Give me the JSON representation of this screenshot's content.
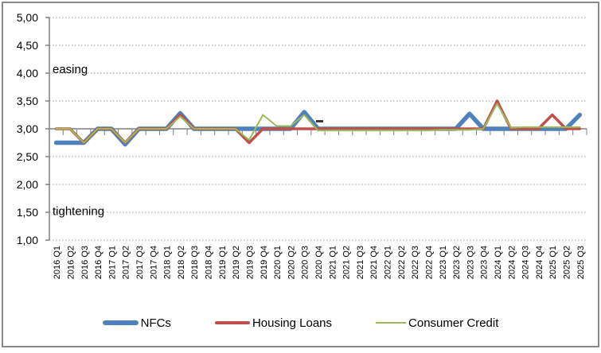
{
  "chart_data": {
    "type": "line",
    "title": "",
    "xlabel": "",
    "ylabel": "",
    "grid": "horizontal-dotted",
    "legend_position": "bottom",
    "ylim": [
      1.0,
      5.0
    ],
    "category_axis_cross_value": 3.0,
    "yticks": [
      {
        "label": "5,00",
        "value": 5.0
      },
      {
        "label": "4,50",
        "value": 4.5
      },
      {
        "label": "4,00",
        "value": 4.0
      },
      {
        "label": "3,50",
        "value": 3.5
      },
      {
        "label": "3,00",
        "value": 3.0
      },
      {
        "label": "2,50",
        "value": 2.5
      },
      {
        "label": "2,00",
        "value": 2.0
      },
      {
        "label": "1,50",
        "value": 1.5
      },
      {
        "label": "1,00",
        "value": 1.0
      }
    ],
    "categories": [
      "2016 Q1",
      "2016 Q2",
      "2016 Q3",
      "2016 Q4",
      "2017 Q1",
      "2017 Q2",
      "2017 Q3",
      "2017 Q4",
      "2018 Q1",
      "2018 Q2",
      "2018 Q3",
      "2018 Q4",
      "2019 Q1",
      "2019 Q2",
      "2019 Q3",
      "2019 Q4",
      "2020 Q1",
      "2020 Q2",
      "2020 Q3",
      "2020 Q4",
      "2021 Q1",
      "2021 Q2",
      "2021 Q3",
      "2021 Q4",
      "2022 Q1",
      "2022 Q2",
      "2022 Q3",
      "2022 Q4",
      "2023 Q1",
      "2023 Q2",
      "2023 Q3",
      "2023 Q4",
      "2024 Q1",
      "2024 Q2",
      "2024 Q3",
      "2024 Q4",
      "2025 Q1",
      "2025 Q2",
      "2025 Q3"
    ],
    "series": [
      {
        "name": "NFCs",
        "color": "#4F81BD",
        "stroke_width": 5.5,
        "values": [
          2.75,
          2.75,
          2.75,
          3.0,
          3.0,
          2.72,
          3.0,
          3.0,
          3.0,
          3.28,
          3.0,
          3.0,
          3.0,
          3.0,
          3.0,
          3.0,
          3.0,
          3.0,
          3.3,
          3.0,
          3.0,
          3.0,
          3.0,
          3.0,
          3.0,
          3.0,
          3.0,
          3.0,
          3.0,
          3.0,
          3.27,
          3.0,
          3.0,
          3.0,
          3.0,
          3.0,
          3.0,
          3.0,
          3.25
        ]
      },
      {
        "name": "Housing Loans",
        "color": "#C0504D",
        "stroke_width": 3.5,
        "values": [
          3.0,
          3.0,
          2.75,
          3.0,
          3.0,
          2.75,
          3.0,
          3.0,
          3.0,
          3.25,
          3.0,
          3.0,
          3.0,
          3.0,
          2.75,
          3.0,
          3.0,
          3.0,
          3.0,
          3.0,
          3.0,
          3.0,
          3.0,
          3.0,
          3.0,
          3.0,
          3.0,
          3.0,
          3.0,
          3.0,
          3.0,
          3.0,
          3.5,
          3.0,
          3.0,
          3.0,
          3.25,
          3.0,
          3.0
        ]
      },
      {
        "name": "Consumer Credit",
        "color": "#9BBB59",
        "stroke_width": 2,
        "values": [
          3.0,
          3.0,
          2.75,
          3.0,
          3.0,
          2.75,
          3.0,
          3.0,
          3.0,
          3.22,
          3.0,
          3.0,
          3.0,
          3.0,
          2.8,
          3.25,
          3.05,
          3.05,
          3.25,
          2.97,
          2.97,
          2.97,
          2.97,
          2.97,
          2.97,
          2.97,
          2.97,
          2.97,
          2.98,
          2.98,
          2.98,
          3.0,
          3.45,
          3.02,
          3.03,
          3.03,
          3.03,
          3.03,
          3.03
        ]
      }
    ],
    "annotations": [
      {
        "text": "easing",
        "y_value": 4.0
      },
      {
        "text": "tightening",
        "y_value": 1.45
      }
    ]
  },
  "colors": {
    "gridline": "#999999",
    "axis": "#808080",
    "text": "#000000",
    "frame": "#8A8A8A",
    "background": "#FFFFFF"
  }
}
